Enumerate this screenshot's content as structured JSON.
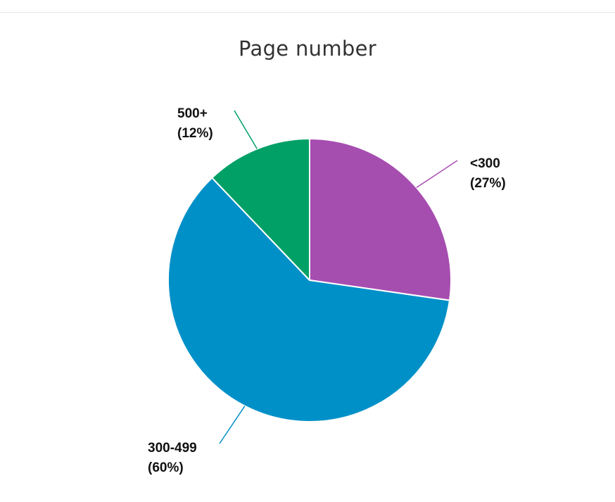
{
  "chart_data": {
    "type": "pie",
    "title": "Page number",
    "slices": [
      {
        "label": "<300",
        "percent_label": "(27%)",
        "value": 27,
        "color": "#a64db0"
      },
      {
        "label": "300-499",
        "percent_label": "(60%)",
        "value": 60,
        "color": "#0090c8"
      },
      {
        "label": "500+",
        "percent_label": "(12%)",
        "value": 12,
        "color": "#00a067"
      }
    ],
    "start_angle": "top, clockwise",
    "legend": "none (inline labels with leader lines)"
  }
}
